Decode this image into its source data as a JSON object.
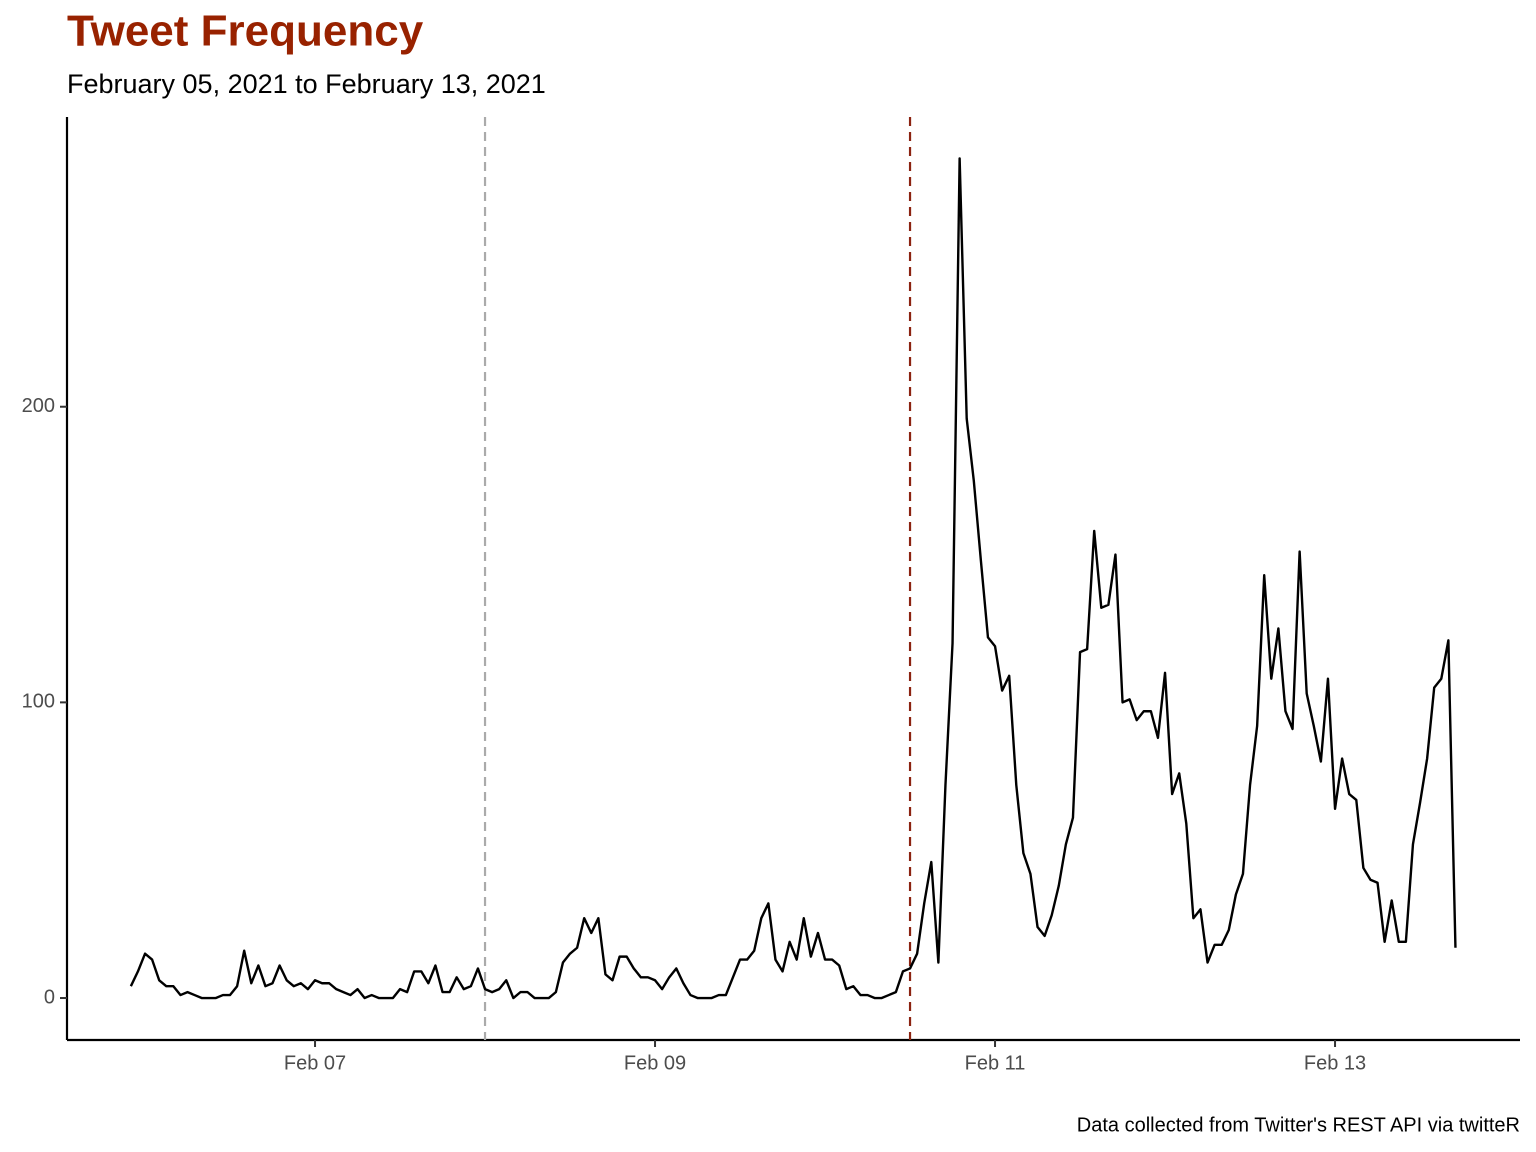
{
  "chart_data": {
    "type": "line",
    "title": "Tweet Frequency",
    "subtitle": "February 05, 2021 to February 13, 2021",
    "caption": "Data collected from Twitter's REST API via twitteR",
    "color": "#000000",
    "x": [
      5.9167,
      5.9583,
      6,
      6.0417,
      6.0833,
      6.125,
      6.1667,
      6.2083,
      6.25,
      6.2917,
      6.3333,
      6.375,
      6.4167,
      6.4583,
      6.5,
      6.5417,
      6.5833,
      6.625,
      6.6667,
      6.7083,
      6.75,
      6.7917,
      6.8333,
      6.875,
      6.9167,
      6.9583,
      7,
      7.0417,
      7.0833,
      7.125,
      7.1667,
      7.2083,
      7.25,
      7.2917,
      7.3333,
      7.375,
      7.4167,
      7.4583,
      7.5,
      7.5417,
      7.5833,
      7.625,
      7.6667,
      7.7083,
      7.75,
      7.7917,
      7.8333,
      7.875,
      7.9167,
      7.9583,
      8,
      8.0417,
      8.0833,
      8.125,
      8.1667,
      8.2083,
      8.25,
      8.2917,
      8.3333,
      8.375,
      8.4167,
      8.4583,
      8.5,
      8.5417,
      8.5833,
      8.625,
      8.6667,
      8.7083,
      8.75,
      8.7917,
      8.8333,
      8.875,
      8.9167,
      8.9583,
      9,
      9.0417,
      9.0833,
      9.125,
      9.1667,
      9.2083,
      9.25,
      9.2917,
      9.3333,
      9.375,
      9.4167,
      9.4583,
      9.5,
      9.5417,
      9.5833,
      9.625,
      9.6667,
      9.7083,
      9.75,
      9.7917,
      9.8333,
      9.875,
      9.9167,
      9.9583,
      10,
      10.0417,
      10.0833,
      10.125,
      10.1667,
      10.2083,
      10.25,
      10.2917,
      10.3333,
      10.375,
      10.4167,
      10.4583,
      10.5,
      10.5417,
      10.5833,
      10.625,
      10.6667,
      10.7083,
      10.75,
      10.7917,
      10.8333,
      10.875,
      10.9167,
      10.9583,
      11,
      11.0417,
      11.0833,
      11.125,
      11.1667,
      11.2083,
      11.25,
      11.2917,
      11.3333,
      11.375,
      11.4167,
      11.4583,
      11.5,
      11.5417,
      11.5833,
      11.625,
      11.6667,
      11.7083,
      11.75,
      11.7917,
      11.8333,
      11.875,
      11.9167,
      11.9583,
      12,
      12.0417,
      12.0833,
      12.125,
      12.1667,
      12.2083,
      12.25,
      12.2917,
      12.3333,
      12.375,
      12.4167,
      12.4583,
      12.5,
      12.5417,
      12.5833,
      12.625,
      12.6667,
      12.7083,
      12.75,
      12.7917,
      12.8333,
      12.875,
      12.9167,
      12.9583,
      13,
      13.0417,
      13.0833,
      13.125,
      13.1667,
      13.2083,
      13.25,
      13.2917,
      13.3333,
      13.375,
      13.4167,
      13.4583,
      13.5,
      13.5417,
      13.5833,
      13.625,
      13.6667,
      13.7083
    ],
    "values": [
      4,
      9,
      15,
      13,
      6,
      4,
      4,
      1,
      2,
      1,
      0,
      0,
      0,
      1,
      1,
      4,
      16,
      5,
      11,
      4,
      5,
      11,
      6,
      4,
      5,
      3,
      6,
      5,
      5,
      3,
      2,
      1,
      3,
      0,
      1,
      0,
      0,
      0,
      3,
      2,
      9,
      9,
      5,
      11,
      2,
      2,
      7,
      3,
      4,
      10,
      3,
      2,
      3,
      6,
      0,
      2,
      2,
      0,
      0,
      0,
      2,
      12,
      15,
      17,
      27,
      22,
      27,
      8,
      6,
      14,
      14,
      10,
      7,
      7,
      6,
      3,
      7,
      10,
      5,
      1,
      0,
      0,
      0,
      1,
      1,
      7,
      13,
      13,
      16,
      27,
      32,
      13,
      9,
      19,
      13,
      27,
      14,
      22,
      13,
      13,
      11,
      3,
      4,
      1,
      1,
      0,
      0,
      1,
      2,
      9,
      10,
      15,
      32,
      46,
      12,
      72,
      120,
      284,
      196,
      175,
      148,
      122,
      119,
      104,
      109,
      72,
      49,
      42,
      24,
      21,
      28,
      38,
      52,
      61,
      117,
      118,
      158,
      132,
      133,
      150,
      100,
      101,
      94,
      97,
      97,
      88,
      110,
      69,
      76,
      59,
      27,
      30,
      12,
      18,
      18,
      23,
      35,
      42,
      72,
      92,
      143,
      108,
      125,
      97,
      91,
      151,
      103,
      92,
      80,
      108,
      64,
      81,
      69,
      67,
      44,
      40,
      39,
      19,
      33,
      19,
      19,
      52,
      66,
      81,
      105,
      108,
      121,
      17
    ],
    "xlim": [
      5.541,
      14.088
    ],
    "xticks": [
      {
        "value": 7,
        "label": "Feb 07"
      },
      {
        "value": 9,
        "label": "Feb 09"
      },
      {
        "value": 11,
        "label": "Feb 11"
      },
      {
        "value": 13,
        "label": "Feb 13"
      }
    ],
    "ylim": [
      -14.2,
      298
    ],
    "yticks": [
      0,
      100,
      200
    ],
    "vlines": [
      {
        "x": 8,
        "color": "#aaaaaa"
      },
      {
        "x": 10.5,
        "color": "#8b2311"
      }
    ]
  }
}
